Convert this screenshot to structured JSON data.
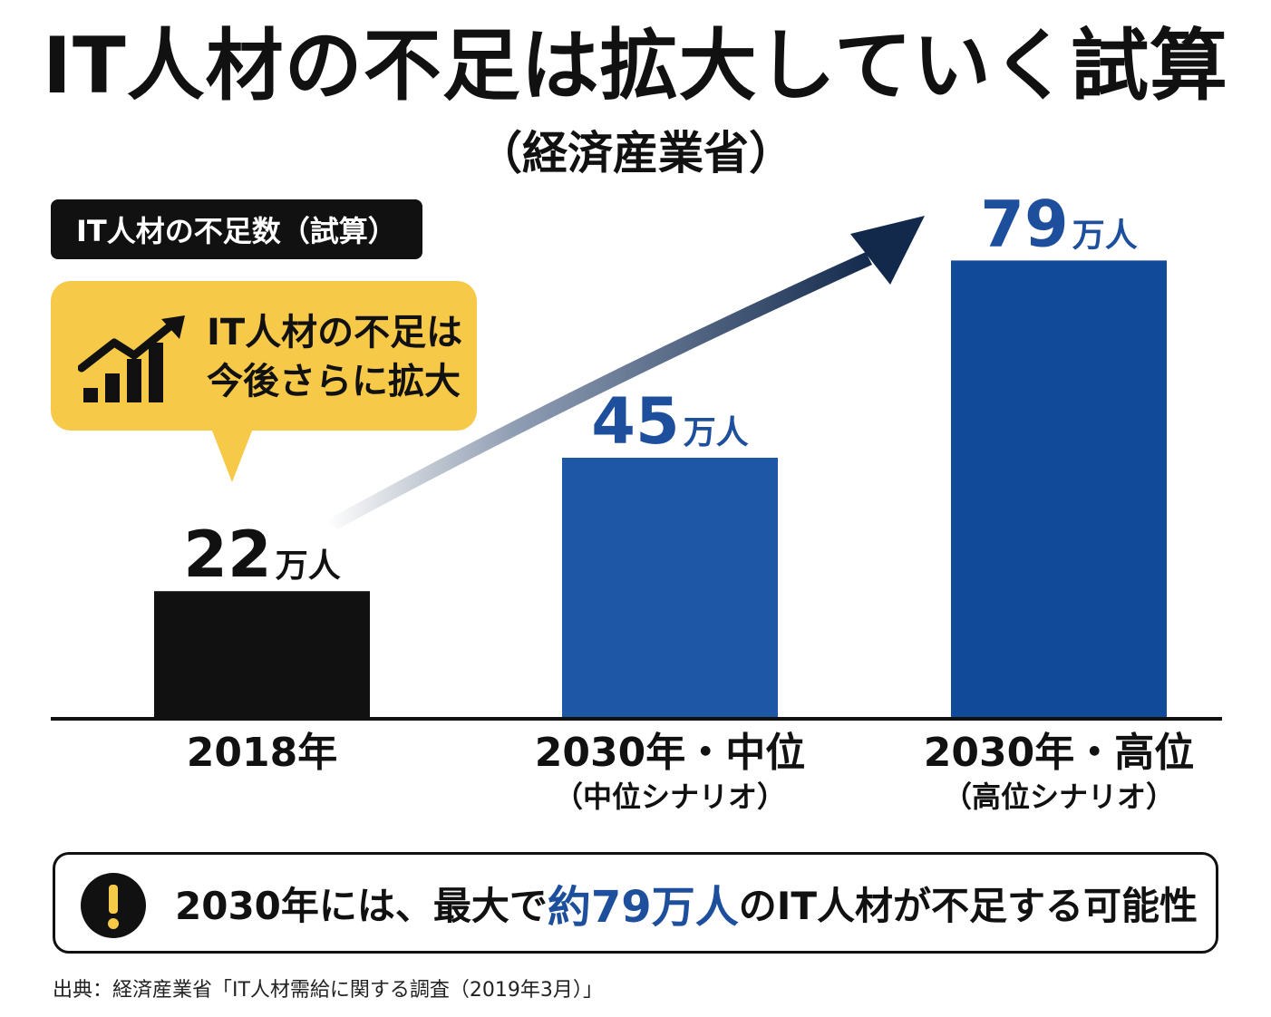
{
  "header": {
    "title": "IT人材の不足は拡大していく試算",
    "subtitle": "（経済産業省）"
  },
  "label_box": "IT人材の不足数（試算）",
  "bubble": {
    "line1": "IT人材の不足は",
    "line2": "今後さらに拡大",
    "icon": "rising-chart-icon"
  },
  "colors": {
    "bar_2018": "#111111",
    "bar_2030": "#1d57a6",
    "bar_2030_high": "#124a9a",
    "accent": "#1d4f9c",
    "bubble": "#f7c948",
    "arrow": "#13294b"
  },
  "chart_data": {
    "type": "bar",
    "categories": [
      "2018年",
      "2030年・中位",
      "2030年・高位"
    ],
    "category_subtitles": [
      "",
      "（中位シナリオ）",
      "（高位シナリオ）"
    ],
    "values": [
      22,
      45,
      79
    ],
    "value_labels": [
      {
        "number": "22",
        "unit": "万人"
      },
      {
        "number": "45",
        "unit": "万人"
      },
      {
        "number": "79",
        "unit": "万人"
      }
    ],
    "title": "IT人材の不足数（試算）",
    "ylim": [
      0,
      90
    ],
    "grid": false,
    "legend": "none"
  },
  "note": {
    "prefix": "2030年には、最大で",
    "highlight": "約79万人",
    "suffix": "のIT人材が不足する可能性"
  },
  "source": "出典：経済産業省「IT人材需給に関する調査（2019年3月）」"
}
